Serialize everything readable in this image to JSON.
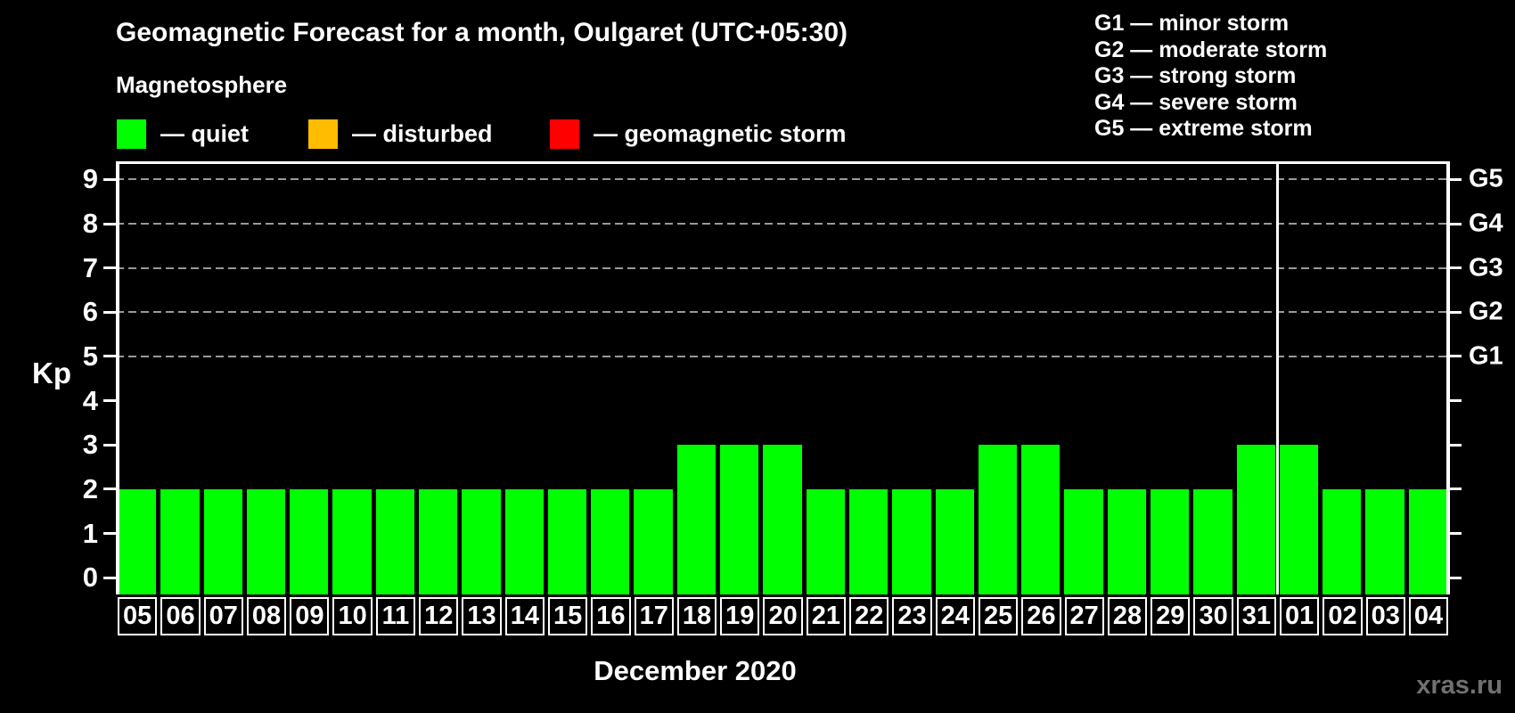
{
  "title": "Geomagnetic Forecast for a month, Oulgaret (UTC+05:30)",
  "subtitle": "Magnetosphere",
  "legend": {
    "items": [
      {
        "name": "quiet",
        "label": "— quiet",
        "color": "#00ff00"
      },
      {
        "name": "disturbed",
        "label": "— disturbed",
        "color": "#ffbc00"
      },
      {
        "name": "geomagnetic-storm",
        "label": "— geomagnetic storm",
        "color": "#ff0000"
      }
    ]
  },
  "storm_scale": {
    "lines": [
      "G1 — minor storm",
      "G2 — moderate storm",
      "G3 — strong storm",
      "G4 — severe storm",
      "G5 — extreme storm"
    ]
  },
  "footer": {
    "x_axis_label": "December 2020",
    "watermark": "xras.ru"
  },
  "chart_data": {
    "type": "bar",
    "title": "Geomagnetic Forecast for a month, Oulgaret (UTC+05:30)",
    "xlabel": "December 2020",
    "ylabel": "Kp",
    "categories": [
      "05",
      "06",
      "07",
      "08",
      "09",
      "10",
      "11",
      "12",
      "13",
      "14",
      "15",
      "16",
      "17",
      "18",
      "19",
      "20",
      "21",
      "22",
      "23",
      "24",
      "25",
      "26",
      "27",
      "28",
      "29",
      "30",
      "31",
      "01",
      "02",
      "03",
      "04"
    ],
    "values": [
      2,
      2,
      2,
      2,
      2,
      2,
      2,
      2,
      2,
      2,
      2,
      2,
      2,
      3,
      3,
      3,
      2,
      2,
      2,
      2,
      3,
      3,
      2,
      2,
      2,
      2,
      3,
      3,
      2,
      2,
      2
    ],
    "bar_color": "#00ff00",
    "ylim": [
      0,
      9
    ],
    "yticks": [
      0,
      1,
      2,
      3,
      4,
      5,
      6,
      7,
      8,
      9
    ],
    "grid_levels": [
      5,
      6,
      7,
      8,
      9
    ],
    "grid_style": "dashed",
    "right_axis": [
      {
        "label": "G5",
        "kp": 9
      },
      {
        "label": "G4",
        "kp": 8
      },
      {
        "label": "G3",
        "kp": 7
      },
      {
        "label": "G2",
        "kp": 6
      },
      {
        "label": "G1",
        "kp": 5
      }
    ],
    "month_separator_after_index": 26,
    "legend_position": "top"
  }
}
